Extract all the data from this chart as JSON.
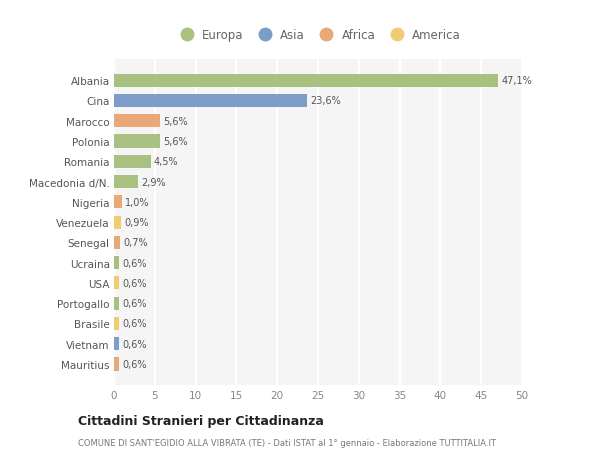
{
  "countries": [
    "Albania",
    "Cina",
    "Marocco",
    "Polonia",
    "Romania",
    "Macedonia d/N.",
    "Nigeria",
    "Venezuela",
    "Senegal",
    "Ucraina",
    "USA",
    "Portogallo",
    "Brasile",
    "Vietnam",
    "Mauritius"
  ],
  "values": [
    47.1,
    23.6,
    5.6,
    5.6,
    4.5,
    2.9,
    1.0,
    0.9,
    0.7,
    0.6,
    0.6,
    0.6,
    0.6,
    0.6,
    0.6
  ],
  "labels": [
    "47,1%",
    "23,6%",
    "5,6%",
    "5,6%",
    "4,5%",
    "2,9%",
    "1,0%",
    "0,9%",
    "0,7%",
    "0,6%",
    "0,6%",
    "0,6%",
    "0,6%",
    "0,6%",
    "0,6%"
  ],
  "colors": [
    "#a8c080",
    "#7b9dc8",
    "#e8a878",
    "#a8c080",
    "#a8c080",
    "#a8c080",
    "#e8a878",
    "#f0cc70",
    "#e8a878",
    "#a8c080",
    "#f0cc70",
    "#a8c080",
    "#f0cc70",
    "#7b9dc8",
    "#e8a878"
  ],
  "legend_labels": [
    "Europa",
    "Asia",
    "Africa",
    "America"
  ],
  "legend_colors": [
    "#a8c080",
    "#7b9dc8",
    "#e8a878",
    "#f0cc70"
  ],
  "title": "Cittadini Stranieri per Cittadinanza",
  "subtitle": "COMUNE DI SANT’EGIDIO ALLA VIBRATA (TE) - Dati ISTAT al 1° gennaio - Elaborazione TUTTITALIA.IT",
  "xlim": [
    0,
    50
  ],
  "xticks": [
    0,
    5,
    10,
    15,
    20,
    25,
    30,
    35,
    40,
    45,
    50
  ],
  "bg_color": "#ffffff",
  "plot_bg_color": "#f5f5f5",
  "grid_color": "#ffffff",
  "bar_height": 0.65
}
